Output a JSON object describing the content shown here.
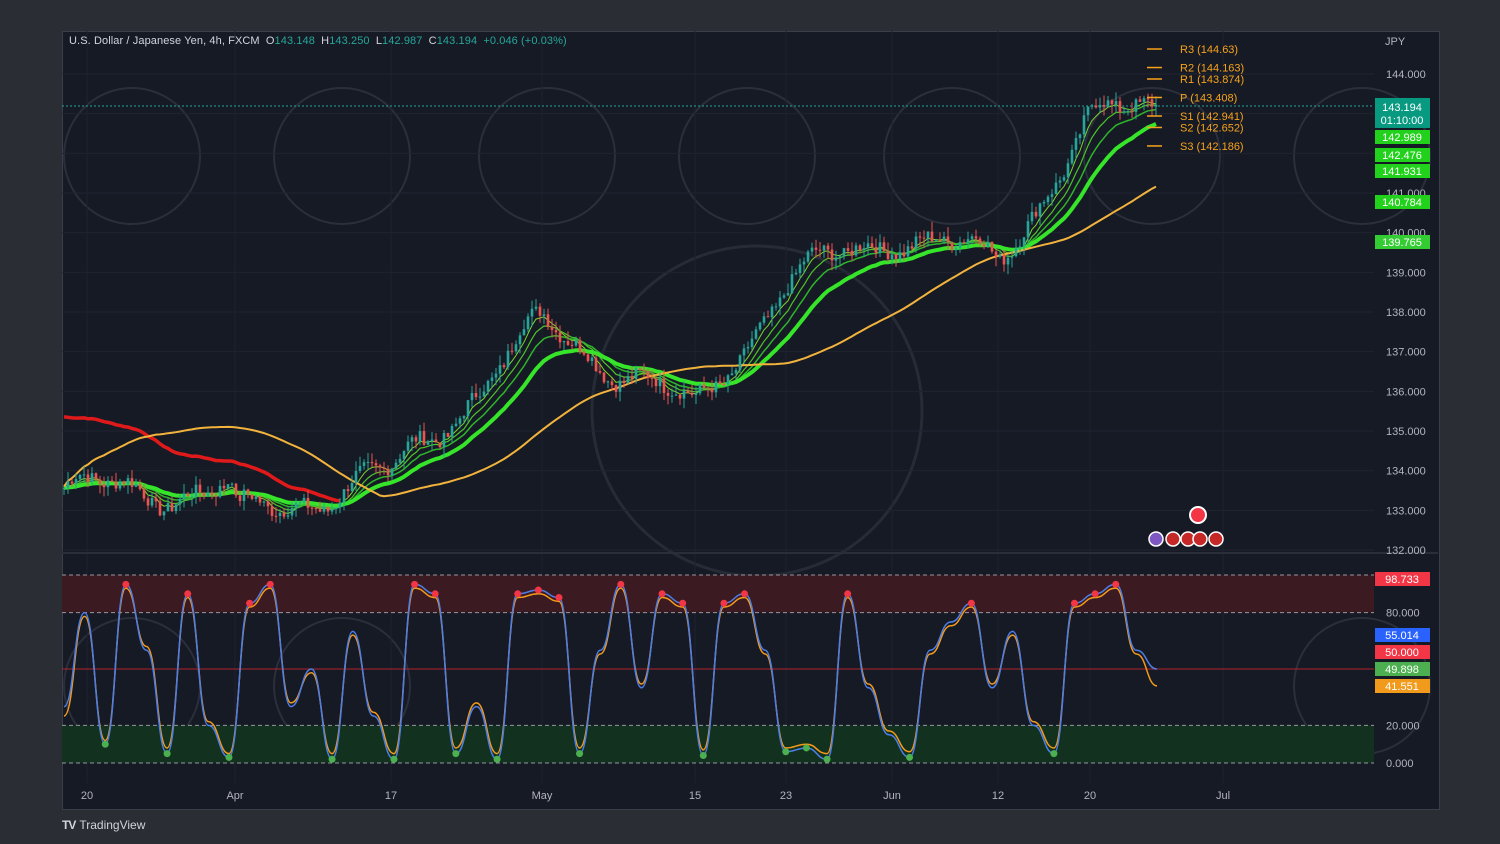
{
  "header": {
    "symbol": "U.S. Dollar / Japanese Yen, 4h, FXCM",
    "o_label": "O",
    "o": "143.148",
    "h_label": "H",
    "h": "143.250",
    "l_label": "L",
    "l": "142.987",
    "c_label": "C",
    "c": "143.194",
    "change": "+0.046 (+0.03%)"
  },
  "brand": {
    "logo_text": "TV",
    "name": "TradingView"
  },
  "currency": "JPY",
  "colors": {
    "background": "#161a25",
    "up": "#26a69a",
    "down": "#ef5350",
    "pivot": "#f7a21b",
    "ema_green": "#36e52a",
    "slow_ma": "#f2b33d",
    "overbought_zone": "#3c1a22",
    "oversold_zone": "#12321f",
    "k_line": "#4d7ee8",
    "d_line": "#f29a1b"
  },
  "chart_data": [
    {
      "type": "candlestick",
      "title": "U.S. Dollar / Japanese Yen, 4h, FXCM",
      "y_unit": "JPY",
      "ylim": [
        132.0,
        145.0
      ],
      "y_ticks": [
        "144.000",
        "143.000",
        "142.000",
        "141.000",
        "140.000",
        "139.000",
        "138.000",
        "137.000",
        "136.000",
        "135.000",
        "134.000",
        "133.000",
        "132.000"
      ],
      "x_ticks": [
        "20",
        "Apr",
        "17",
        "May",
        "15",
        "23",
        "Jun",
        "12",
        "20",
        "Jul"
      ],
      "price_path": [
        [
          "20",
          133.5
        ],
        [
          "Apr",
          132.8
        ],
        [
          "17",
          133.9
        ],
        [
          "May",
          137.7
        ],
        [
          "15",
          135.5
        ],
        [
          "23",
          138.7
        ],
        [
          "Jun",
          140.0
        ],
        [
          "12",
          139.3
        ],
        [
          "20",
          142.8
        ],
        [
          "end",
          143.2
        ]
      ],
      "pivots": [
        {
          "label": "R3",
          "value": "144.63"
        },
        {
          "label": "R2",
          "value": "144.163"
        },
        {
          "label": "R1",
          "value": "143.874"
        },
        {
          "label": "P",
          "value": "143.408"
        },
        {
          "label": "S1",
          "value": "142.941"
        },
        {
          "label": "S2",
          "value": "142.652"
        },
        {
          "label": "S3",
          "value": "142.186"
        }
      ],
      "price_tags": [
        {
          "value": "143.194",
          "countdown": "01:10:00",
          "color": "#089981"
        },
        {
          "value": "142.989",
          "color": "#22d11b"
        },
        {
          "value": "142.476",
          "color": "#22d11b"
        },
        {
          "value": "141.931",
          "color": "#22d11b"
        },
        {
          "value": "140.784",
          "color": "#22d11b"
        },
        {
          "value": "139.765",
          "color": "#33cc33"
        }
      ]
    },
    {
      "type": "line",
      "ylim": [
        0,
        100
      ],
      "y_ticks": [
        "80.000",
        "20.000",
        "0.000"
      ],
      "levels": [
        80,
        50,
        20
      ],
      "tags": [
        {
          "value": "98.733",
          "color": "#f23645"
        },
        {
          "value": "55.014",
          "color": "#2962ff"
        },
        {
          "value": "50.000",
          "color": "#f23645"
        },
        {
          "value": "49.898",
          "color": "#4caf50"
        },
        {
          "value": "41.551",
          "color": "#f29a1b"
        }
      ],
      "series": [
        {
          "values": [
            30,
            80,
            10,
            95,
            60,
            5,
            90,
            20,
            3,
            85,
            95,
            30,
            50,
            2,
            70,
            25,
            2,
            95,
            90,
            5,
            30,
            2,
            90,
            92,
            88,
            5,
            60,
            95,
            40,
            90,
            85,
            4,
            85,
            90,
            60,
            6,
            8,
            2,
            90,
            40,
            15,
            3,
            60,
            75,
            85,
            40,
            70,
            20,
            5,
            85,
            90,
            95,
            60,
            50
          ]
        },
        {
          "values": [
            25,
            78,
            12,
            93,
            62,
            8,
            88,
            22,
            5,
            83,
            93,
            32,
            48,
            5,
            68,
            27,
            5,
            93,
            88,
            8,
            32,
            5,
            88,
            90,
            86,
            8,
            58,
            93,
            42,
            88,
            83,
            7,
            83,
            88,
            58,
            8,
            10,
            5,
            88,
            42,
            17,
            6,
            58,
            73,
            83,
            42,
            68,
            22,
            8,
            83,
            88,
            93,
            58,
            41
          ]
        }
      ]
    }
  ]
}
